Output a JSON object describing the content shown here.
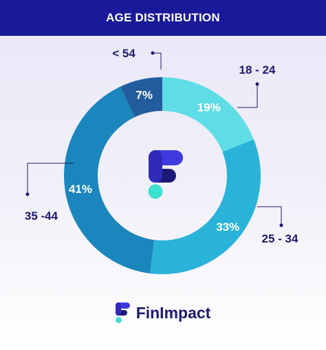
{
  "header": {
    "title": "AGE DISTRIBUTION"
  },
  "brand": {
    "name": "FinImpact"
  },
  "colors": {
    "header_bg": "#19199a",
    "logo_primary": "#3f3ae0",
    "logo_dark": "#1c1878",
    "logo_dot": "#3ee0d0"
  },
  "chart_data": {
    "type": "pie",
    "title": "AGE DISTRIBUTION",
    "donut": true,
    "categories": [
      "18 - 24",
      "25 - 34",
      "35 -44",
      "< 54"
    ],
    "values": [
      19,
      33,
      41,
      7
    ],
    "value_labels": [
      "19%",
      "33%",
      "41%",
      "7%"
    ],
    "colors": [
      "#5fdde6",
      "#2ab3d8",
      "#1b86bd",
      "#235c9c"
    ],
    "legend": "callout-labels"
  }
}
